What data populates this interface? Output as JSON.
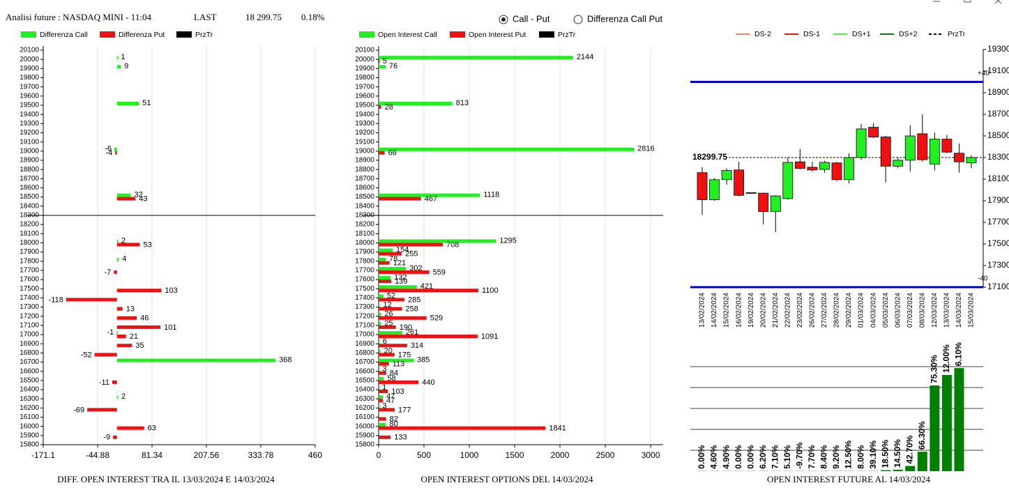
{
  "header": {
    "title": "Analisi future : NASDAQ MINI - 11:04",
    "last_label": "LAST",
    "last": "18 299.75",
    "change": "0.18%"
  },
  "radio": [
    {
      "label": "Call - Put",
      "checked": true
    },
    {
      "label": "Differenza Call Put",
      "checked": false
    }
  ],
  "chart_data": [
    {
      "type": "hbar",
      "caption": "DIFF. OPEN INTEREST TRA IL 13/03/2024 E 14/03/2024",
      "categories": [
        "20100",
        "20000",
        "19900",
        "19800",
        "19700",
        "19600",
        "19500",
        "19400",
        "19300",
        "19200",
        "19100",
        "19000",
        "18900",
        "18800",
        "18700",
        "18600",
        "18500",
        "18400",
        "18300",
        "18200",
        "18100",
        "18000",
        "17900",
        "17800",
        "17700",
        "17600",
        "17500",
        "17400",
        "17300",
        "17200",
        "17100",
        "17000",
        "16900",
        "16800",
        "16700",
        "16600",
        "16500",
        "16400",
        "16300",
        "16200",
        "16100",
        "16000",
        "15900",
        "15800"
      ],
      "series": [
        {
          "name": "Differenza Call",
          "color": "#22ee22",
          "values": [
            null,
            1,
            9,
            null,
            null,
            null,
            51,
            null,
            null,
            null,
            null,
            -6,
            null,
            null,
            null,
            null,
            32,
            null,
            null,
            null,
            null,
            2,
            null,
            4,
            null,
            null,
            null,
            null,
            null,
            null,
            null,
            -1,
            null,
            null,
            368,
            null,
            null,
            null,
            2,
            null,
            null,
            null,
            null,
            null
          ]
        },
        {
          "name": "Differenza Put",
          "color": "#ee1111",
          "values": [
            null,
            null,
            null,
            null,
            null,
            null,
            null,
            null,
            null,
            null,
            null,
            -4,
            null,
            null,
            null,
            null,
            43,
            null,
            null,
            null,
            null,
            53,
            null,
            null,
            -7,
            null,
            103,
            -118,
            13,
            46,
            101,
            21,
            35,
            -52,
            null,
            null,
            -11,
            null,
            null,
            -69,
            null,
            63,
            -9,
            null
          ]
        }
      ],
      "reference_line": {
        "name": "PrzTr",
        "color": "#000000",
        "value": 18299.75
      },
      "xlim": [
        -171.1,
        460
      ],
      "xticks": [
        -171.1,
        -44.88,
        81.34,
        207.56,
        333.78,
        460
      ],
      "grid": true
    },
    {
      "type": "hbar",
      "caption": "OPEN INTEREST OPTIONS DEL 14/03/2024",
      "categories": [
        "20100",
        "20000",
        "19900",
        "19800",
        "19700",
        "19600",
        "19500",
        "19400",
        "19300",
        "19200",
        "19100",
        "19000",
        "18900",
        "18800",
        "18700",
        "18600",
        "18500",
        "18400",
        "18300",
        "18200",
        "18100",
        "18000",
        "17900",
        "17800",
        "17700",
        "17600",
        "17500",
        "17400",
        "17300",
        "17200",
        "17100",
        "17000",
        "16900",
        "16800",
        "16700",
        "16600",
        "16500",
        "16400",
        "16300",
        "16200",
        "16100",
        "16000",
        "15900",
        "15800"
      ],
      "series": [
        {
          "name": "Open Interest Call",
          "color": "#22ee22",
          "values": [
            null,
            2144,
            76,
            null,
            null,
            null,
            813,
            null,
            null,
            null,
            null,
            2816,
            null,
            null,
            null,
            null,
            1118,
            null,
            null,
            null,
            null,
            1295,
            154,
            78,
            302,
            132,
            421,
            52,
            12,
            26,
            25,
            261,
            6,
            20,
            385,
            3,
            58,
            1,
            47,
            3,
            null,
            80,
            null,
            null
          ]
        },
        {
          "name": "Open Interest Put",
          "color": "#ee1111",
          "values": [
            null,
            5,
            null,
            null,
            null,
            null,
            28,
            null,
            null,
            null,
            null,
            66,
            null,
            null,
            null,
            null,
            467,
            null,
            null,
            null,
            null,
            708,
            255,
            121,
            559,
            139,
            1100,
            285,
            258,
            529,
            190,
            1091,
            314,
            175,
            113,
            84,
            440,
            103,
            47,
            177,
            82,
            1841,
            133,
            null
          ]
        }
      ],
      "reference_line": {
        "name": "PrzTr",
        "color": "#000000",
        "value": 18299.75
      },
      "xlim": [
        0,
        3138
      ],
      "xticks": [
        0,
        500,
        1000,
        1500,
        2000,
        2500,
        3000
      ],
      "grid": true
    },
    {
      "type": "candlestick",
      "x": [
        "13/02/2024",
        "14/02/2024",
        "15/02/2024",
        "16/02/2024",
        "19/02/2024",
        "20/02/2024",
        "21/02/2024",
        "22/02/2024",
        "23/02/2024",
        "26/02/2024",
        "27/02/2024",
        "28/02/2024",
        "29/02/2024",
        "01/03/2024",
        "04/03/2024",
        "05/03/2024",
        "06/03/2024",
        "07/03/2024",
        "08/03/2024",
        "12/03/2024",
        "13/03/2024",
        "14/03/2024",
        "15/03/2024"
      ],
      "open": [
        18160,
        17910,
        18095,
        18185,
        17975,
        17970,
        17800,
        17920,
        18260,
        18210,
        18190,
        18250,
        18095,
        18300,
        18580,
        18490,
        18220,
        18275,
        18520,
        18240,
        18470,
        18340,
        18250
      ],
      "close": [
        17910,
        18095,
        18180,
        17950,
        17970,
        17800,
        17945,
        18255,
        18200,
        18185,
        18255,
        18095,
        18300,
        18565,
        18490,
        18220,
        18275,
        18500,
        18280,
        18470,
        18350,
        18260,
        18300
      ],
      "high": [
        18210,
        18110,
        18200,
        18260,
        17975,
        17975,
        17950,
        18300,
        18380,
        18260,
        18270,
        18260,
        18340,
        18610,
        18620,
        18500,
        18300,
        18600,
        18700,
        18530,
        18510,
        18430,
        18320
      ],
      "low": [
        17770,
        17900,
        18050,
        17940,
        17970,
        17680,
        17610,
        17910,
        18190,
        18170,
        18160,
        18080,
        18060,
        18280,
        18480,
        18070,
        18200,
        18170,
        18260,
        18180,
        18340,
        18160,
        18200
      ],
      "up_color": "#22ee22",
      "down_color": "#ee1111",
      "wick_color": "#000000",
      "legend_entries": [
        {
          "name": "DS-2",
          "color": "#f08060"
        },
        {
          "name": "DS-1",
          "color": "#ee1111"
        },
        {
          "name": "DS+1",
          "color": "#44ee44"
        },
        {
          "name": "DS+2",
          "color": "#008000"
        }
      ],
      "reference_line": {
        "name": "PrzTr",
        "color": "#000000",
        "value": 18299.75,
        "dashed": true
      },
      "levels": [
        {
          "value": 19000,
          "label": "+40",
          "color": "#0000cc"
        },
        {
          "value": 17100,
          "label": "-40",
          "color": "#0000cc"
        }
      ],
      "ylim": [
        17100,
        19300
      ],
      "yticks": [
        17100,
        17300,
        17500,
        17700,
        17900,
        18100,
        18300,
        18500,
        18700,
        18900,
        19100,
        19300
      ]
    },
    {
      "type": "bar",
      "caption": "OPEN INTEREST FUTURE AL 14/03/2024",
      "color": "#008000",
      "values": [
        0.01,
        0.01,
        0.01,
        0.01,
        0.01,
        0.01,
        0.01,
        0.01,
        0.01,
        0.01,
        0.01,
        0.01,
        0.01,
        0.01,
        0.01,
        0.05,
        0.07,
        0.25,
        0.93,
        4.1,
        4.6,
        4.93
      ],
      "change_labels": [
        "0.00%",
        "4.60%",
        "4.90%",
        "0.00%",
        "0.00%",
        "6.20%",
        "7.10%",
        "5.10%",
        "-9.70%",
        "7.70%",
        "8.40%",
        "9.20%",
        "12.50%",
        "8.00%",
        "39.10%",
        "18.50%",
        "14.50%",
        "42.70%",
        "66.30%",
        "75.30%",
        "12.00%",
        "6.10%"
      ],
      "ylim": [
        0,
        5
      ],
      "ygrid": [
        1,
        2,
        3,
        4,
        5
      ]
    }
  ]
}
